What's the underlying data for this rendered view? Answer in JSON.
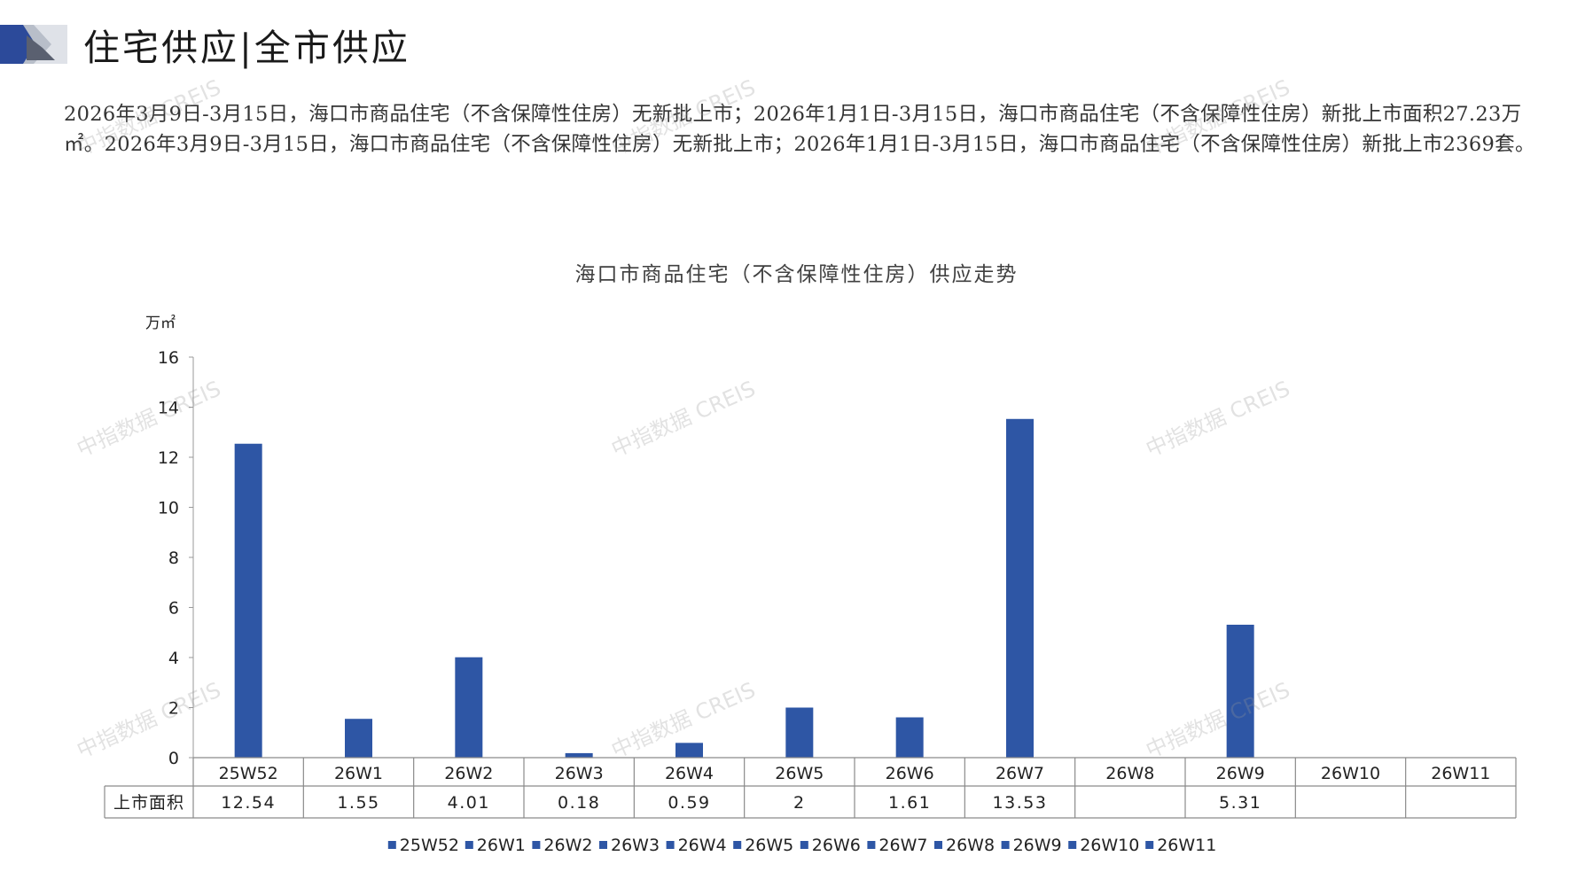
{
  "header": {
    "title": "住宅供应|全市供应"
  },
  "summary": "2026年3月9日-3月15日，海口市商品住宅（不含保障性住房）无新批上市；2026年1月1日-3月15日，海口市商品住宅（不含保障性住房）新批上市面积27.23万㎡。2026年3月9日-3月15日，海口市商品住宅（不含保障性住房）无新批上市；2026年1月1日-3月15日，海口市商品住宅（不含保障性住房）新批上市2369套。",
  "watermark": "中指数据 CREIS",
  "colors": {
    "bar": "#2e56a5",
    "deco_dark": "#2c4a9a",
    "deco_light": "#b8bec9"
  },
  "chart_data": {
    "type": "bar",
    "title": "海口市商品住宅（不含保障性住房）供应走势",
    "ylabel": "万㎡",
    "ylim": [
      0,
      16
    ],
    "yticks": [
      "0",
      "2",
      "4",
      "6",
      "8",
      "10",
      "12",
      "14",
      "16"
    ],
    "categories": [
      "25W52",
      "26W1",
      "26W2",
      "26W3",
      "26W4",
      "26W5",
      "26W6",
      "26W7",
      "26W8",
      "26W9",
      "26W10",
      "26W11"
    ],
    "series": [
      {
        "name": "上市面积",
        "values": [
          12.54,
          1.55,
          4.01,
          0.18,
          0.59,
          2,
          1.61,
          13.53,
          null,
          5.31,
          null,
          null
        ],
        "labels": [
          "12.54",
          "1.55",
          "4.01",
          "0.18",
          "0.59",
          "2",
          "1.61",
          "13.53",
          "",
          "5.31",
          "",
          ""
        ]
      }
    ],
    "legend": [
      "25W52",
      "26W1",
      "26W2",
      "26W3",
      "26W4",
      "26W5",
      "26W6",
      "26W7",
      "26W8",
      "26W9",
      "26W10",
      "26W11"
    ],
    "legend_position": "bottom",
    "grid": false,
    "data_table": true
  }
}
